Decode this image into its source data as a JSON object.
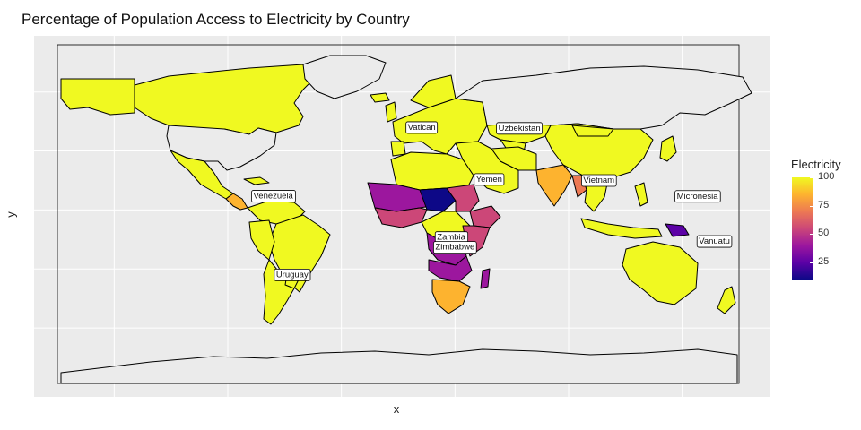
{
  "title": "Percentage of Population Access to Electricity by Country",
  "xlabel": "x",
  "ylabel": "y",
  "legend": {
    "title": "Electricity",
    "ticks": [
      100,
      75,
      50,
      25
    ],
    "range": [
      10,
      100
    ],
    "gradient": [
      "#0d0887",
      "#5c01a6",
      "#9c179e",
      "#cc4778",
      "#ed7953",
      "#fdb32f",
      "#f0f921"
    ]
  },
  "chart_data": {
    "type": "choropleth",
    "variable": "Electricity",
    "color_scale": "plasma",
    "labeled_countries": [
      {
        "name": "Vatican",
        "lon": 12.4,
        "lat": 41.9
      },
      {
        "name": "Uzbekistan",
        "lon": 64.0,
        "lat": 41.5
      },
      {
        "name": "Yemen",
        "lon": 48.0,
        "lat": 15.5
      },
      {
        "name": "Vietnam",
        "lon": 106.0,
        "lat": 15.0
      },
      {
        "name": "Micronesia",
        "lon": 158.0,
        "lat": 6.9
      },
      {
        "name": "Venezuela",
        "lon": -66.0,
        "lat": 7.0
      },
      {
        "name": "Zambia",
        "lon": 28.0,
        "lat": -14.0
      },
      {
        "name": "Zimbabwe",
        "lon": 30.0,
        "lat": -19.0
      },
      {
        "name": "Vanuatu",
        "lon": 167.0,
        "lat": -16.0
      },
      {
        "name": "Uruguay",
        "lon": -56.0,
        "lat": -33.0
      }
    ],
    "grid": true,
    "legend_position": "right"
  }
}
